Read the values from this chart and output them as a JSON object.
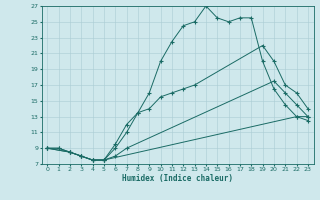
{
  "xlabel": "Humidex (Indice chaleur)",
  "bg_color": "#cfe8ec",
  "line_color": "#1a6b65",
  "grid_color": "#aacdd4",
  "xlim": [
    -0.5,
    23.5
  ],
  "ylim": [
    7,
    27
  ],
  "xticks": [
    0,
    1,
    2,
    3,
    4,
    5,
    6,
    7,
    8,
    9,
    10,
    11,
    12,
    13,
    14,
    15,
    16,
    17,
    18,
    19,
    20,
    21,
    22,
    23
  ],
  "yticks": [
    7,
    9,
    11,
    13,
    15,
    17,
    19,
    21,
    23,
    25,
    27
  ],
  "lines": [
    {
      "x": [
        0,
        1,
        2,
        3,
        4,
        5,
        22,
        23
      ],
      "y": [
        9,
        9,
        8.5,
        8,
        7.5,
        7.5,
        13,
        12.5
      ]
    },
    {
      "x": [
        0,
        1,
        2,
        3,
        4,
        5,
        6,
        7,
        20,
        21,
        22,
        23
      ],
      "y": [
        9,
        9,
        8.5,
        8,
        7.5,
        7.5,
        8,
        9,
        17.5,
        16,
        14.5,
        13
      ]
    },
    {
      "x": [
        0,
        2,
        3,
        4,
        5,
        6,
        7,
        8,
        9,
        10,
        11,
        12,
        13,
        19,
        20,
        21,
        22,
        23
      ],
      "y": [
        9,
        8.5,
        8,
        7.5,
        7.5,
        9,
        11,
        13.5,
        14,
        15.5,
        16,
        16.5,
        17,
        22,
        20,
        17,
        16,
        14
      ]
    },
    {
      "x": [
        0,
        2,
        3,
        4,
        5,
        6,
        7,
        8,
        9,
        10,
        11,
        12,
        13,
        14,
        15,
        16,
        17,
        18,
        19,
        20,
        21,
        22,
        23
      ],
      "y": [
        9,
        8.5,
        8,
        7.5,
        7.5,
        9.5,
        12,
        13.5,
        16,
        20,
        22.5,
        24.5,
        25,
        27,
        25.5,
        25,
        25.5,
        25.5,
        20,
        16.5,
        14.5,
        13,
        13
      ]
    }
  ]
}
